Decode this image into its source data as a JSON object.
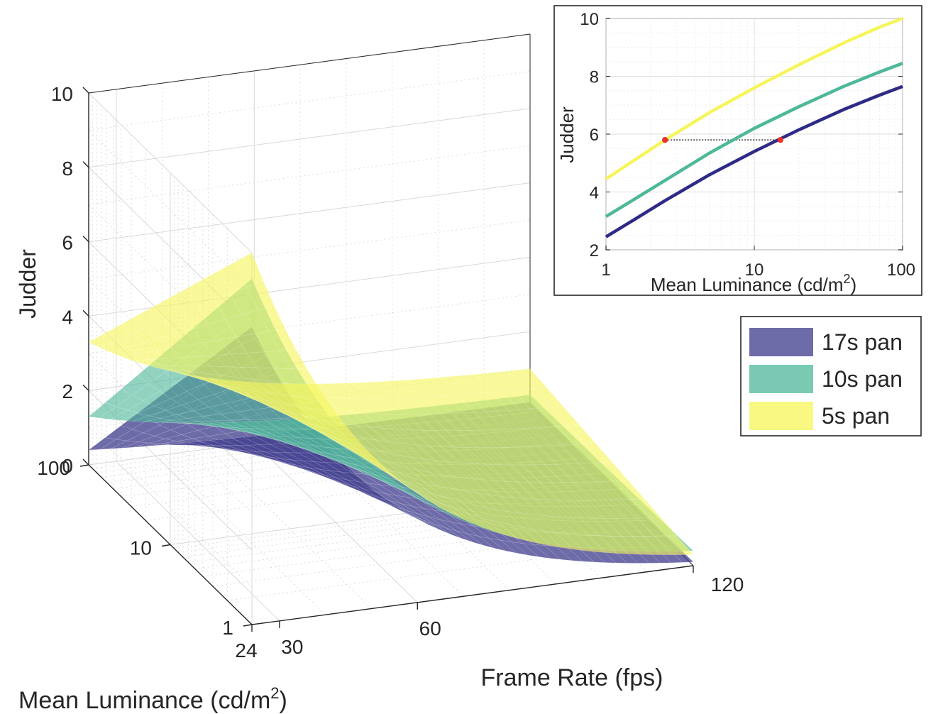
{
  "chart_data": [
    {
      "type": "surface",
      "zlabel": "Judder",
      "xlabel": "Frame Rate (fps)",
      "ylabel": "Mean Luminance (cd/m",
      "ylabel_sup": "2",
      "ylabel_close": ")",
      "x_ticks": [
        "24",
        "30",
        "60",
        "120"
      ],
      "y_ticks": [
        "1",
        "10",
        "100"
      ],
      "z_ticks": [
        "0",
        "2",
        "4",
        "6",
        "8",
        "10"
      ],
      "xlim": [
        24,
        120
      ],
      "ylim": [
        1,
        100
      ],
      "zlim": [
        0,
        10
      ],
      "y_scale": "log",
      "grid": true,
      "legend_position": "right",
      "series": [
        {
          "name": "17s pan",
          "color": "#3d3a8c",
          "corners": {
            "fr24_lum1": 8.0,
            "fr24_lum100": 0.4,
            "fr120_lum1": 0.1,
            "fr120_lum100": 0.1
          }
        },
        {
          "name": "10s pan",
          "color": "#4db89a",
          "corners": {
            "fr24_lum1": 9.3,
            "fr24_lum100": 1.3,
            "fr120_lum1": 0.4,
            "fr120_lum100": 0.3
          }
        },
        {
          "name": "5s pan",
          "color": "#f6f55a",
          "corners": {
            "fr24_lum1": 10.0,
            "fr24_lum100": 3.3,
            "fr120_lum1": 0.3,
            "fr120_lum100": 1.0
          }
        }
      ]
    },
    {
      "type": "line",
      "xlabel": "Mean Luminance (cd/m",
      "xlabel_sup": "2",
      "xlabel_close": ")",
      "ylabel": "Judder",
      "x_ticks": [
        "1",
        "10",
        "100"
      ],
      "y_ticks": [
        "2",
        "4",
        "6",
        "8",
        "10"
      ],
      "x_scale": "log",
      "xlim": [
        1,
        100
      ],
      "ylim": [
        2,
        10
      ],
      "grid": true,
      "series": [
        {
          "name": "5s pan",
          "color": "#f6f55a",
          "x": [
            1,
            1.5,
            2.5,
            5,
            10,
            20,
            40,
            70,
            100
          ],
          "y": [
            4.45,
            5.05,
            5.8,
            6.75,
            7.6,
            8.4,
            9.15,
            9.7,
            10.0
          ]
        },
        {
          "name": "10s pan",
          "color": "#4db89a",
          "x": [
            1,
            1.5,
            2.5,
            5,
            10,
            20,
            40,
            70,
            100
          ],
          "y": [
            3.15,
            3.7,
            4.4,
            5.35,
            6.2,
            6.95,
            7.65,
            8.15,
            8.45
          ]
        },
        {
          "name": "17s pan",
          "color": "#2e2a86",
          "x": [
            1,
            1.5,
            2.5,
            5,
            10,
            20,
            40,
            70,
            100
          ],
          "y": [
            2.45,
            3.0,
            3.7,
            4.6,
            5.4,
            6.15,
            6.85,
            7.35,
            7.65
          ]
        }
      ],
      "markers": [
        {
          "x": 2.5,
          "y": 5.8,
          "color": "#e8332a"
        },
        {
          "x": 15,
          "y": 5.8,
          "color": "#e8332a"
        }
      ]
    }
  ]
}
